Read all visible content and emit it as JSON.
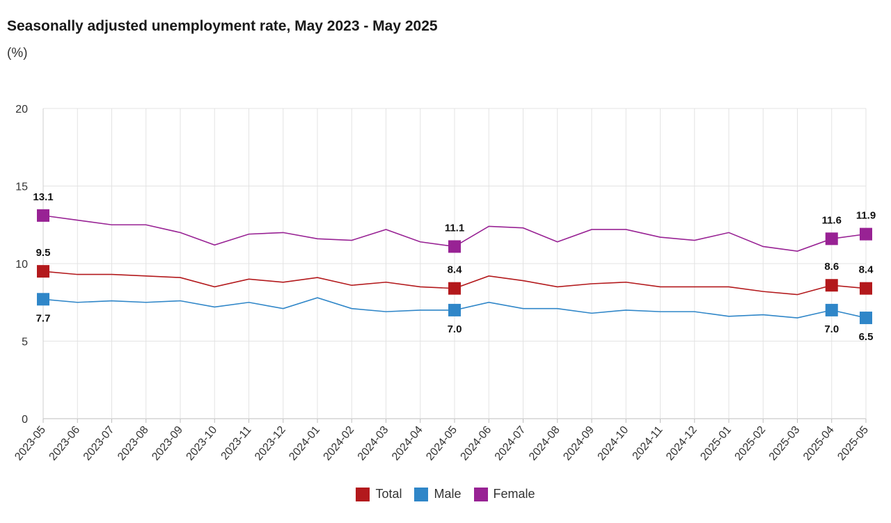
{
  "header": {
    "title": "Seasonally adjusted unemployment rate, May 2023 - May 2025",
    "unit": "(%)"
  },
  "colors": {
    "Total": "#b3191c",
    "Male": "#2f86c8",
    "Female": "#982294",
    "grid": "#e3e3e3"
  },
  "chart_data": {
    "type": "line",
    "title": "Seasonally adjusted unemployment rate, May 2023 - May 2025",
    "ylabel": "(%)",
    "xlabel": "",
    "ylim": [
      0,
      20
    ],
    "yticks": [
      "0",
      "5",
      "10",
      "15",
      "20"
    ],
    "grid": true,
    "legend_position": "bottom",
    "categories": [
      "2023-05",
      "2023-06",
      "2023-07",
      "2023-08",
      "2023-09",
      "2023-10",
      "2023-11",
      "2023-12",
      "2024-01",
      "2024-02",
      "2024-03",
      "2024-04",
      "2024-05",
      "2024-06",
      "2024-07",
      "2024-08",
      "2024-09",
      "2024-10",
      "2024-11",
      "2024-12",
      "2025-01",
      "2025-02",
      "2025-03",
      "2025-04",
      "2025-05"
    ],
    "series": [
      {
        "name": "Total",
        "values": [
          9.5,
          9.3,
          9.3,
          9.2,
          9.1,
          8.5,
          9.0,
          8.8,
          9.1,
          8.6,
          8.8,
          8.5,
          8.4,
          9.2,
          8.9,
          8.5,
          8.7,
          8.8,
          8.5,
          8.5,
          8.5,
          8.2,
          8.0,
          8.6,
          8.4
        ]
      },
      {
        "name": "Male",
        "values": [
          7.7,
          7.5,
          7.6,
          7.5,
          7.6,
          7.2,
          7.5,
          7.1,
          7.8,
          7.1,
          6.9,
          7.0,
          7.0,
          7.5,
          7.1,
          7.1,
          6.8,
          7.0,
          6.9,
          6.9,
          6.6,
          6.7,
          6.5,
          7.0,
          6.5
        ]
      },
      {
        "name": "Female",
        "values": [
          13.1,
          12.8,
          12.5,
          12.5,
          12.0,
          11.2,
          11.9,
          12.0,
          11.6,
          11.5,
          12.2,
          11.4,
          11.1,
          12.4,
          12.3,
          11.4,
          12.2,
          12.2,
          11.7,
          11.5,
          12.0,
          11.1,
          10.8,
          11.6,
          11.9
        ]
      }
    ],
    "labeled_points": {
      "Total": {
        "indices": [
          0,
          12,
          23,
          24
        ],
        "labels": [
          "9.5",
          "8.4",
          "8.6",
          "8.4"
        ]
      },
      "Male": {
        "indices": [
          0,
          12,
          23,
          24
        ],
        "labels": [
          "7.7",
          "7.0",
          "7.0",
          "6.5"
        ]
      },
      "Female": {
        "indices": [
          0,
          12,
          23,
          24
        ],
        "labels": [
          "13.1",
          "11.1",
          "11.6",
          "11.9"
        ]
      }
    }
  },
  "legend": [
    {
      "label": "Total"
    },
    {
      "label": "Male"
    },
    {
      "label": "Female"
    }
  ]
}
